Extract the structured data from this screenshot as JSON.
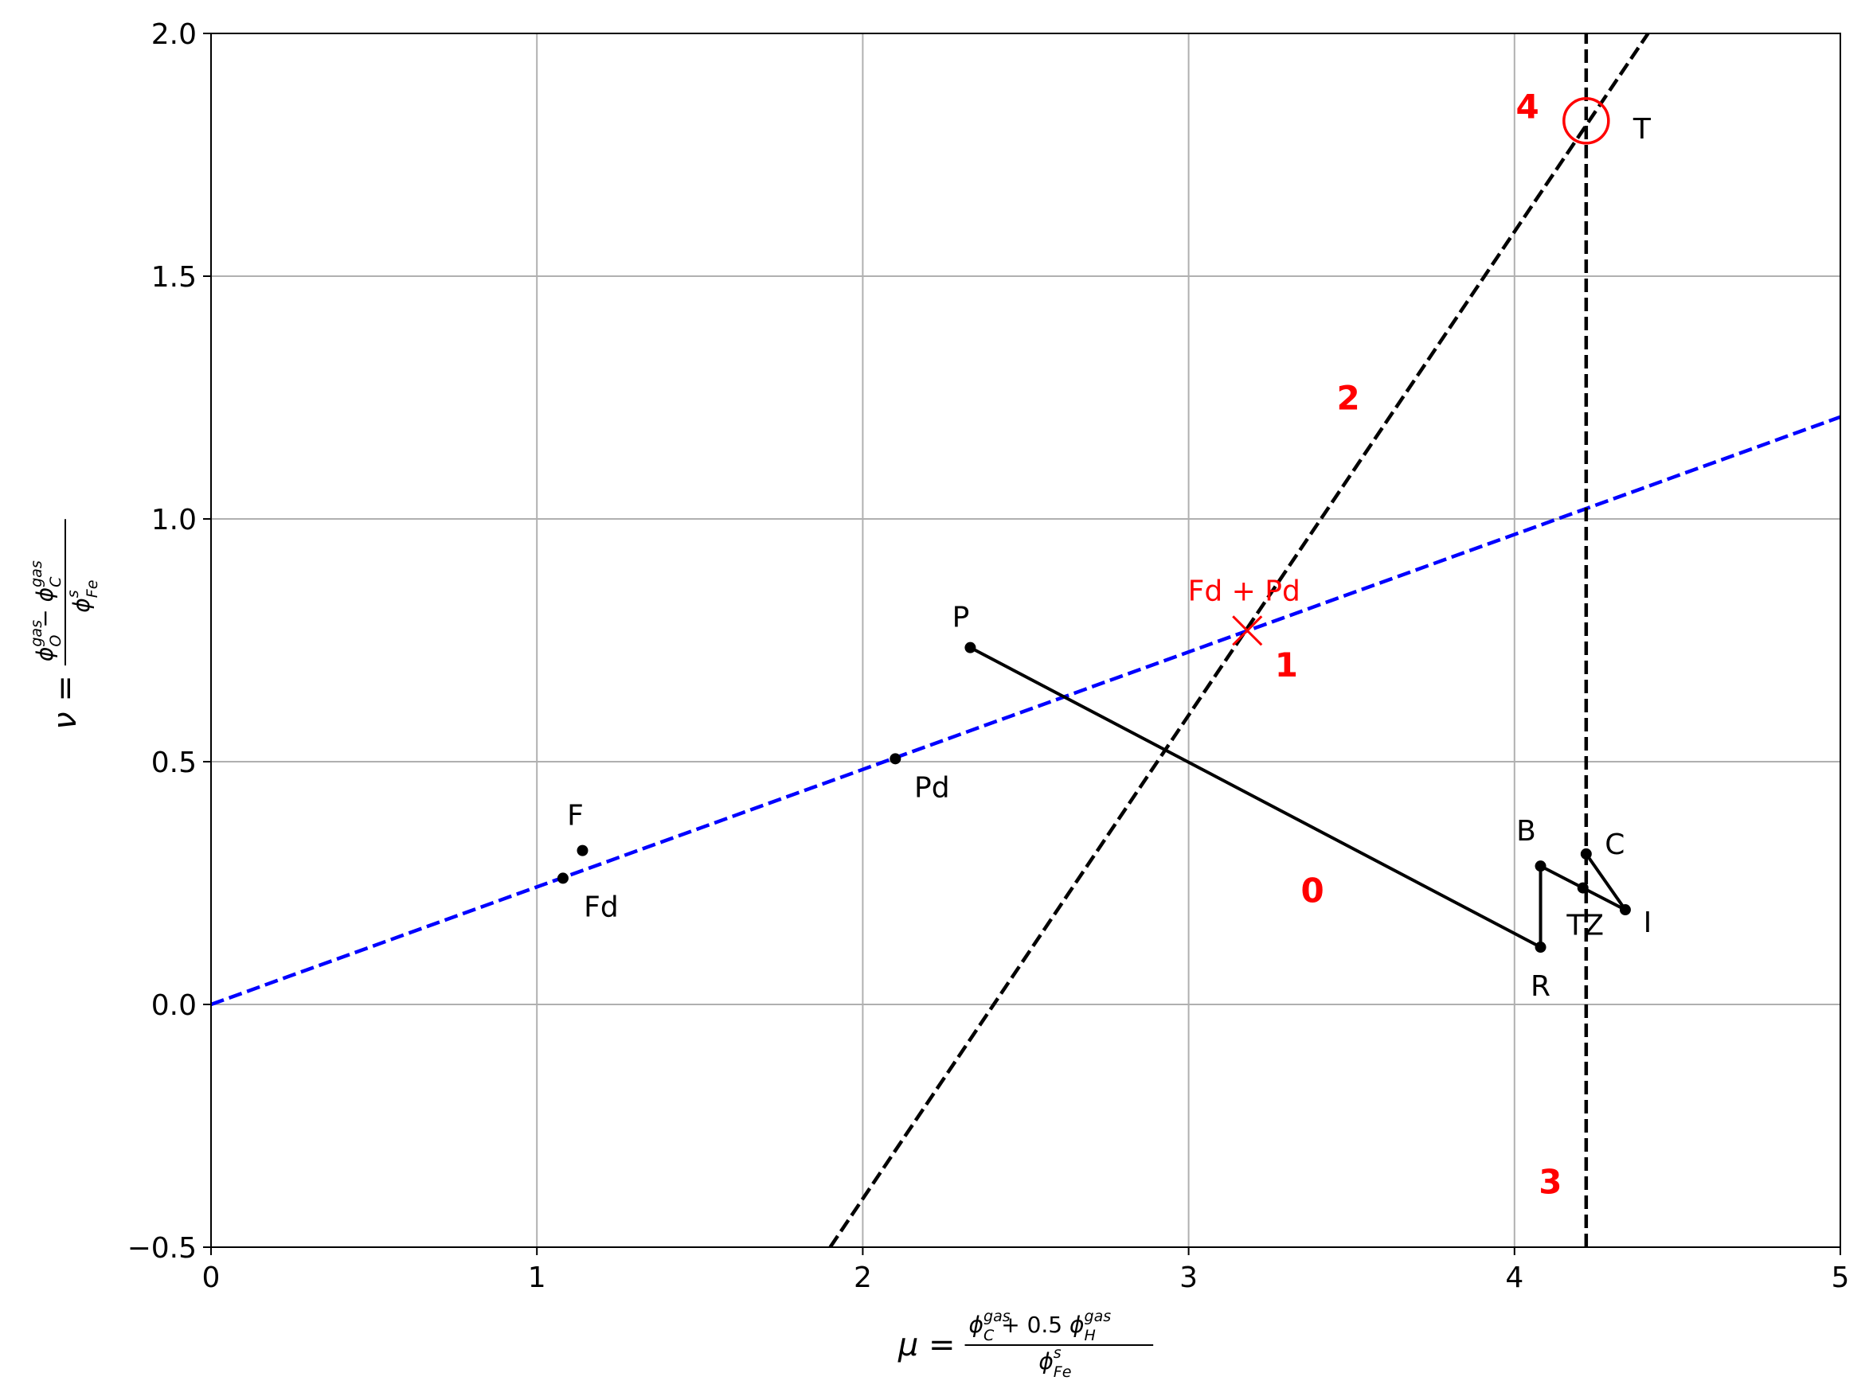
{
  "chart_data": {
    "type": "scatter",
    "x_label": {
      "symbol": "μ =",
      "numerator": [
        {
          "base": "ϕ",
          "sub": "C",
          "sup": "gas"
        },
        {
          "text": " + 0.5 "
        },
        {
          "base": "ϕ",
          "sub": "H",
          "sup": "gas"
        }
      ],
      "denominator": [
        {
          "base": "ϕ",
          "sub": "Fe",
          "sup": "s"
        }
      ]
    },
    "y_label": {
      "symbol": "ν =",
      "numerator": [
        {
          "base": "ϕ",
          "sub": "O",
          "sup": "gas"
        },
        {
          "text": " − "
        },
        {
          "base": "ϕ",
          "sub": "C",
          "sup": "gas"
        }
      ],
      "denominator": [
        {
          "base": "ϕ",
          "sub": "Fe",
          "sup": "s"
        }
      ]
    },
    "xlim": [
      0,
      5
    ],
    "ylim": [
      -0.5,
      2.0
    ],
    "xticks": [
      0,
      1,
      2,
      3,
      4,
      5
    ],
    "yticks": [
      {
        "value": -0.5,
        "label": "−0.5"
      },
      {
        "value": 0,
        "label": "0.0"
      },
      {
        "value": 0.5,
        "label": "0.5"
      },
      {
        "value": 1,
        "label": "1.0"
      },
      {
        "value": 1.5,
        "label": "1.5"
      },
      {
        "value": 2,
        "label": "2.0"
      }
    ],
    "grid": true,
    "series": [
      {
        "labels": [
          "P",
          "R",
          "B",
          "TZ",
          "I",
          "C"
        ],
        "x": [
          2.33,
          4.08,
          4.08,
          4.21,
          4.34,
          4.22
        ],
        "y": [
          0.735,
          0.118,
          0.285,
          0.24,
          0.195,
          0.31
        ],
        "color": "#000000",
        "connected": true
      },
      {
        "labels": [
          "F",
          "Fd",
          "Pd"
        ],
        "x": [
          1.14,
          1.08,
          2.1
        ],
        "y": [
          0.317,
          0.26,
          0.506
        ],
        "color": "#000000",
        "connected": false
      }
    ],
    "lines": [
      {
        "x": [
          0,
          5
        ],
        "y": [
          0,
          1.21
        ],
        "color": "#0000ff",
        "dashed": true
      },
      {
        "x": [
          1.9,
          4.41
        ],
        "y": [
          -0.5,
          2.0
        ],
        "color": "#000000",
        "dashed": true
      },
      {
        "x": [
          4.22,
          4.22
        ],
        "y": [
          -0.5,
          2.0
        ],
        "color": "#000000",
        "dashed": true
      }
    ],
    "markers": [
      {
        "label": "Fd + Pd",
        "x": 3.18,
        "y": 0.77,
        "shape": "x",
        "color": "#ff0000",
        "label_color": "#ff0000"
      },
      {
        "label": "T",
        "x": 4.22,
        "y": 1.82,
        "shape": "circle",
        "color": "#ff0000",
        "label_color": "#000000"
      }
    ],
    "annotations": [
      {
        "text": "0",
        "x": 3.38,
        "y": 0.235,
        "color": "#ff0000"
      },
      {
        "text": "1",
        "x": 3.3,
        "y": 0.7,
        "color": "#ff0000"
      },
      {
        "text": "2",
        "x": 3.49,
        "y": 1.25,
        "color": "#ff0000"
      },
      {
        "text": "3",
        "x": 4.11,
        "y": -0.365,
        "color": "#ff0000"
      },
      {
        "text": "4",
        "x": 4.04,
        "y": 1.85,
        "color": "#ff0000"
      }
    ]
  }
}
